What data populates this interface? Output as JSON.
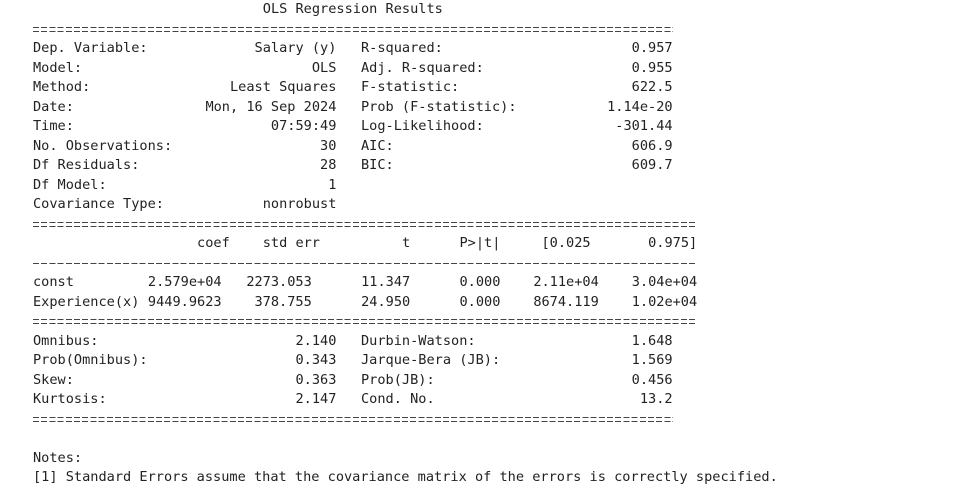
{
  "header": {
    "title": "OLS Regression Results"
  },
  "summary": [
    {
      "label": "Dep. Variable:",
      "value": "Salary (y)",
      "stat_label": "R-squared:",
      "stat_value": "0.957"
    },
    {
      "label": "Model:",
      "value": "OLS",
      "stat_label": "Adj. R-squared:",
      "stat_value": "0.955"
    },
    {
      "label": "Method:",
      "value": "Least Squares",
      "stat_label": "F-statistic:",
      "stat_value": "622.5"
    },
    {
      "label": "Date:",
      "value": "Mon, 16 Sep 2024",
      "stat_label": "Prob (F-statistic):",
      "stat_value": "1.14e-20"
    },
    {
      "label": "Time:",
      "value": "07:59:49",
      "stat_label": "Log-Likelihood:",
      "stat_value": "-301.44"
    },
    {
      "label": "No. Observations:",
      "value": "30",
      "stat_label": "AIC:",
      "stat_value": "606.9"
    },
    {
      "label": "Df Residuals:",
      "value": "28",
      "stat_label": "BIC:",
      "stat_value": "609.7"
    },
    {
      "label": "Df Model:",
      "value": "1"
    },
    {
      "label": "Covariance Type:",
      "value": "nonrobust"
    }
  ],
  "coef_table": {
    "columns": [
      "coef",
      "std err",
      "t",
      "P>|t|",
      "[0.025",
      "0.975]"
    ],
    "rows": [
      {
        "name": "const",
        "values": [
          "2.579e+04",
          "2273.053",
          "11.347",
          "0.000",
          "2.11e+04",
          "3.04e+04"
        ]
      },
      {
        "name": "Experience(x)",
        "values": [
          "9449.9623",
          "378.755",
          "24.950",
          "0.000",
          "8674.119",
          "1.02e+04"
        ]
      }
    ]
  },
  "diagnostics": [
    {
      "label": "Omnibus:",
      "value": "2.140",
      "stat_label": "Durbin-Watson:",
      "stat_value": "1.648"
    },
    {
      "label": "Prob(Omnibus):",
      "value": "0.343",
      "stat_label": "Jarque-Bera (JB):",
      "stat_value": "1.569"
    },
    {
      "label": "Skew:",
      "value": "0.363",
      "stat_label": "Prob(JB):",
      "stat_value": "0.456"
    },
    {
      "label": "Kurtosis:",
      "value": "2.147",
      "stat_label": "Cond. No.",
      "stat_value": "13.2"
    }
  ],
  "notes": {
    "title": "Notes:",
    "items": [
      "[1] Standard Errors assume that the covariance matrix of the errors is correctly specified."
    ]
  }
}
